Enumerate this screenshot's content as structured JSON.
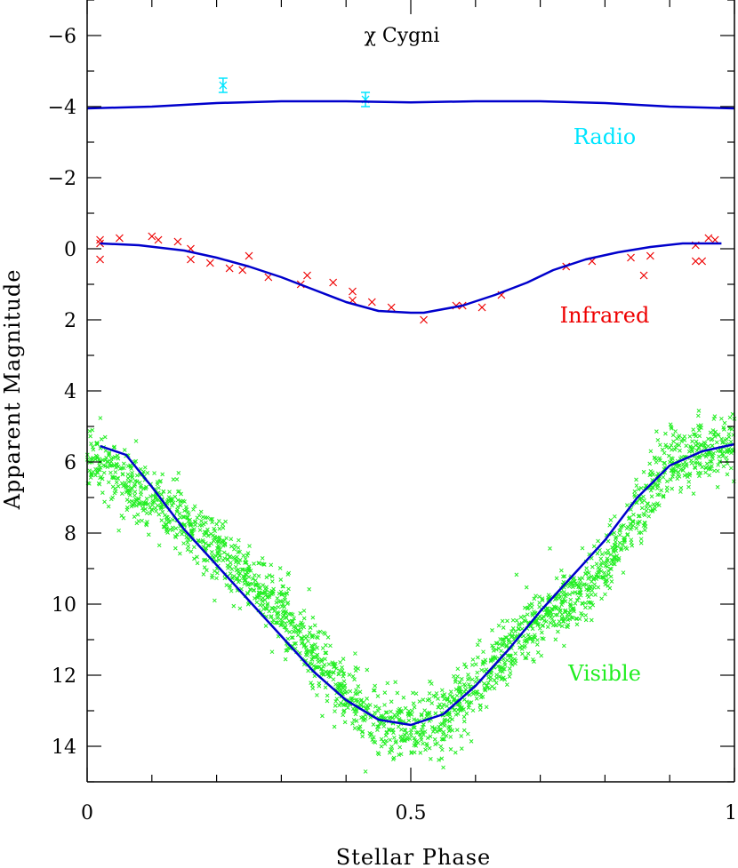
{
  "chart_data": {
    "type": "scatter",
    "title": "χ Cygni",
    "xlabel": "Stellar Phase",
    "ylabel": "Apparent Magnitude",
    "xlim": [
      0,
      1
    ],
    "ylim": [
      15,
      -7
    ],
    "y_inverted": true,
    "grid": false,
    "x_ticks": [
      {
        "value": 0,
        "label": "0"
      },
      {
        "value": 0.5,
        "label": "0.5"
      },
      {
        "value": 1,
        "label": "1"
      }
    ],
    "y_ticks": [
      {
        "value": -6,
        "label": "−6"
      },
      {
        "value": -4,
        "label": "−4"
      },
      {
        "value": -2,
        "label": "−2"
      },
      {
        "value": 0,
        "label": "0"
      },
      {
        "value": 2,
        "label": "2"
      },
      {
        "value": 4,
        "label": "4"
      },
      {
        "value": 6,
        "label": "6"
      },
      {
        "value": 8,
        "label": "8"
      },
      {
        "value": 10,
        "label": "10"
      },
      {
        "value": 12,
        "label": "12"
      },
      {
        "value": 14,
        "label": "14"
      }
    ],
    "series": [
      {
        "name": "Radio",
        "color": "#00e5ff",
        "marker": "x",
        "x": [
          0.21,
          0.43
        ],
        "y": [
          -4.6,
          -4.2
        ],
        "yerr": [
          0.2,
          0.2
        ],
        "model": {
          "color": "#0000cc",
          "x": [
            0.0,
            0.1,
            0.2,
            0.3,
            0.4,
            0.5,
            0.6,
            0.7,
            0.8,
            0.9,
            1.0
          ],
          "y": [
            -3.95,
            -4.0,
            -4.1,
            -4.15,
            -4.15,
            -4.12,
            -4.15,
            -4.15,
            -4.1,
            -4.0,
            -3.95
          ]
        }
      },
      {
        "name": "Infrared",
        "color": "#ee0000",
        "marker": "x",
        "x": [
          0.02,
          0.02,
          0.02,
          0.05,
          0.1,
          0.11,
          0.14,
          0.16,
          0.16,
          0.19,
          0.22,
          0.24,
          0.25,
          0.28,
          0.33,
          0.34,
          0.38,
          0.41,
          0.41,
          0.44,
          0.47,
          0.52,
          0.57,
          0.58,
          0.61,
          0.64,
          0.74,
          0.78,
          0.84,
          0.86,
          0.87,
          0.94,
          0.94,
          0.95,
          0.96,
          0.97
        ],
        "y": [
          -0.25,
          -0.15,
          0.3,
          -0.3,
          -0.35,
          -0.25,
          -0.2,
          0.0,
          0.3,
          0.4,
          0.55,
          0.6,
          0.2,
          0.8,
          1.0,
          0.75,
          0.95,
          1.2,
          1.45,
          1.5,
          1.65,
          2.0,
          1.6,
          1.6,
          1.65,
          1.3,
          0.5,
          0.35,
          0.25,
          0.75,
          0.2,
          0.35,
          -0.1,
          0.35,
          -0.3,
          -0.25
        ],
        "model": {
          "color": "#0000cc",
          "x": [
            0.02,
            0.08,
            0.15,
            0.2,
            0.25,
            0.3,
            0.35,
            0.4,
            0.45,
            0.5,
            0.52,
            0.58,
            0.63,
            0.68,
            0.72,
            0.77,
            0.82,
            0.87,
            0.92,
            0.98
          ],
          "y": [
            -0.15,
            -0.1,
            0.05,
            0.25,
            0.5,
            0.8,
            1.15,
            1.5,
            1.75,
            1.8,
            1.8,
            1.6,
            1.3,
            0.95,
            0.6,
            0.3,
            0.1,
            -0.05,
            -0.15,
            -0.15
          ]
        }
      },
      {
        "name": "Visible",
        "color": "#22ee22",
        "marker": "x",
        "point_count": 2200,
        "x": [
          0.0,
          0.02,
          0.05,
          0.1,
          0.15,
          0.2,
          0.25,
          0.3,
          0.35,
          0.4,
          0.45,
          0.5,
          0.55,
          0.6,
          0.65,
          0.7,
          0.75,
          0.8,
          0.85,
          0.9,
          0.95,
          1.0
        ],
        "y": [
          5.8,
          6.0,
          6.4,
          7.0,
          7.8,
          8.5,
          9.3,
          10.2,
          11.5,
          12.6,
          13.3,
          13.5,
          13.3,
          12.3,
          11.3,
          10.4,
          9.9,
          9.0,
          7.3,
          6.1,
          5.7,
          5.6
        ],
        "spread": 0.45,
        "model": {
          "color": "#0000cc",
          "x": [
            0.02,
            0.06,
            0.1,
            0.15,
            0.2,
            0.25,
            0.3,
            0.35,
            0.4,
            0.45,
            0.5,
            0.55,
            0.6,
            0.65,
            0.7,
            0.75,
            0.8,
            0.85,
            0.9,
            0.95,
            1.0
          ],
          "y": [
            5.55,
            5.8,
            6.7,
            7.9,
            8.9,
            9.9,
            10.9,
            11.9,
            12.7,
            13.25,
            13.4,
            13.1,
            12.3,
            11.3,
            10.2,
            9.2,
            8.2,
            7.0,
            6.1,
            5.7,
            5.5
          ]
        }
      }
    ]
  }
}
